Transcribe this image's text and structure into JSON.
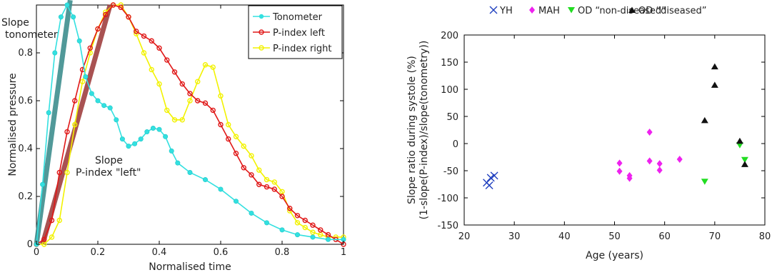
{
  "chart_data": [
    {
      "type": "line",
      "xlabel": "Normalised time",
      "ylabel": "Normalised pressure",
      "xlim": [
        0,
        1
      ],
      "ylim": [
        0,
        1
      ],
      "x_ticks": [
        "0",
        "0.2",
        "0.4",
        "0.6",
        "0.8",
        "1"
      ],
      "y_ticks": [
        "0",
        "0.2",
        "0.4",
        "0.6",
        "0.8"
      ],
      "legend_position": "top-right",
      "annotations": [
        {
          "text_lines": [
            "Slope",
            "tonometer"
          ],
          "color": "#3a9a9a"
        },
        {
          "text_lines": [
            "Slope",
            "P-index \"left\""
          ],
          "color": "#a83030"
        }
      ],
      "slope_lines": [
        {
          "for": "Tonometer",
          "from": [
            0.0,
            0.0
          ],
          "to": [
            0.11,
            1.02
          ],
          "color": "#3f8f8f"
        },
        {
          "for": "P-index left",
          "from": [
            0.02,
            0.0
          ],
          "to": [
            0.24,
            1.0
          ],
          "color": "#a04040"
        }
      ],
      "series": [
        {
          "name": "Tonometer",
          "color": "#33e0e0",
          "marker": "dot",
          "x": [
            0,
            0.02,
            0.04,
            0.06,
            0.08,
            0.1,
            0.12,
            0.14,
            0.16,
            0.18,
            0.2,
            0.22,
            0.24,
            0.26,
            0.28,
            0.3,
            0.32,
            0.34,
            0.36,
            0.38,
            0.4,
            0.42,
            0.44,
            0.46,
            0.5,
            0.55,
            0.6,
            0.65,
            0.7,
            0.75,
            0.8,
            0.85,
            0.9,
            0.95,
            1.0
          ],
          "values": [
            0,
            0.25,
            0.55,
            0.8,
            0.95,
            1.0,
            0.95,
            0.85,
            0.7,
            0.63,
            0.6,
            0.58,
            0.57,
            0.52,
            0.44,
            0.41,
            0.42,
            0.44,
            0.47,
            0.485,
            0.48,
            0.45,
            0.39,
            0.34,
            0.3,
            0.27,
            0.23,
            0.18,
            0.13,
            0.09,
            0.06,
            0.04,
            0.03,
            0.02,
            0.02
          ]
        },
        {
          "name": "P-index left",
          "color": "#e01818",
          "marker": "circle",
          "x": [
            0,
            0.025,
            0.05,
            0.075,
            0.1,
            0.125,
            0.15,
            0.175,
            0.2,
            0.225,
            0.25,
            0.275,
            0.3,
            0.325,
            0.35,
            0.375,
            0.4,
            0.425,
            0.45,
            0.475,
            0.5,
            0.525,
            0.55,
            0.575,
            0.6,
            0.625,
            0.65,
            0.675,
            0.7,
            0.725,
            0.75,
            0.775,
            0.8,
            0.825,
            0.85,
            0.875,
            0.9,
            0.925,
            0.95,
            0.975,
            1.0
          ],
          "values": [
            0,
            0.02,
            0.1,
            0.3,
            0.47,
            0.6,
            0.73,
            0.82,
            0.9,
            0.96,
            1.0,
            0.99,
            0.95,
            0.89,
            0.87,
            0.85,
            0.82,
            0.77,
            0.72,
            0.67,
            0.63,
            0.6,
            0.59,
            0.56,
            0.5,
            0.44,
            0.38,
            0.32,
            0.29,
            0.25,
            0.24,
            0.23,
            0.2,
            0.15,
            0.12,
            0.1,
            0.08,
            0.06,
            0.04,
            0.02,
            0.0
          ]
        },
        {
          "name": "P-index right",
          "color": "#f2f200",
          "marker": "circle",
          "x": [
            0,
            0.025,
            0.05,
            0.075,
            0.1,
            0.125,
            0.15,
            0.175,
            0.2,
            0.225,
            0.25,
            0.275,
            0.3,
            0.325,
            0.35,
            0.375,
            0.4,
            0.425,
            0.45,
            0.475,
            0.5,
            0.525,
            0.55,
            0.575,
            0.6,
            0.625,
            0.65,
            0.675,
            0.7,
            0.725,
            0.75,
            0.775,
            0.8,
            0.825,
            0.85,
            0.875,
            0.9,
            0.925,
            0.95,
            0.975,
            1.0
          ],
          "values": [
            0,
            0.0,
            0.03,
            0.1,
            0.3,
            0.5,
            0.68,
            0.8,
            0.9,
            0.97,
            1.0,
            1.0,
            0.95,
            0.88,
            0.8,
            0.73,
            0.67,
            0.56,
            0.52,
            0.52,
            0.6,
            0.68,
            0.75,
            0.74,
            0.62,
            0.5,
            0.45,
            0.41,
            0.37,
            0.31,
            0.27,
            0.26,
            0.22,
            0.14,
            0.09,
            0.07,
            0.05,
            0.04,
            0.03,
            0.03,
            0.03
          ]
        }
      ]
    },
    {
      "type": "scatter",
      "xlabel": "Age (years)",
      "ylabel_lines": [
        "Slope ratio during systole (%)",
        "(1-slope(P-index)/slope(tonometry))"
      ],
      "xlim": [
        20,
        80
      ],
      "ylim": [
        -150,
        200
      ],
      "x_ticks": [
        "20",
        "30",
        "40",
        "50",
        "60",
        "70",
        "80"
      ],
      "y_ticks": [
        "-150",
        "-100",
        "-50",
        "0",
        "50",
        "100",
        "150",
        "200"
      ],
      "legend_position": "top",
      "series": [
        {
          "name": "YH",
          "color": "#1f3fbf",
          "marker": "x",
          "x": [
            24.5,
            25.0,
            25.3,
            26.0
          ],
          "values": [
            -72,
            -77,
            -63,
            -59
          ]
        },
        {
          "name": "MAH",
          "color": "#ee22ee",
          "marker": "diamond",
          "x": [
            51,
            51,
            53,
            53,
            57,
            57,
            59,
            59,
            63
          ],
          "values": [
            -36,
            -51,
            -59,
            -64,
            21,
            -32,
            -37,
            -49,
            -29
          ]
        },
        {
          "name": "OD “non-diseased”",
          "color": "#22dd22",
          "marker": "triangle-down",
          "x": [
            68,
            75,
            76
          ],
          "values": [
            -70,
            -3,
            -30
          ]
        },
        {
          "name": "OD “diseased”",
          "color": "#111111",
          "marker": "triangle-up",
          "x": [
            68,
            70,
            70,
            75,
            76
          ],
          "values": [
            43,
            108,
            142,
            5,
            -38
          ]
        }
      ]
    }
  ]
}
